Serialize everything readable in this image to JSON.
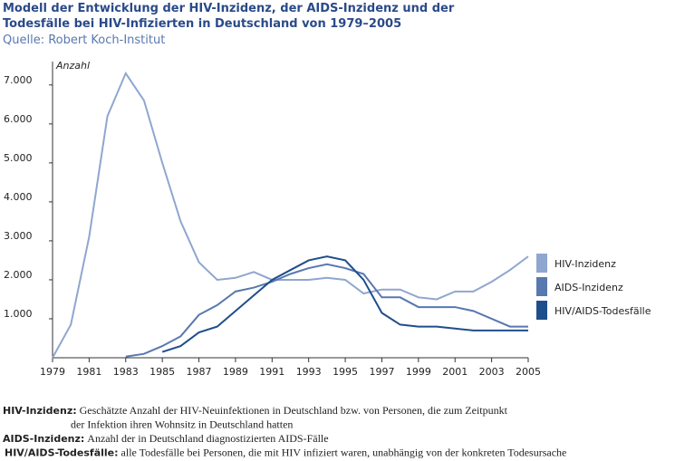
{
  "chart_data": {
    "type": "line",
    "title": [
      "Modell der Entwicklung der HIV-Inzidenz, der AIDS-Inzidenz und der",
      "Todesfälle bei HIV-Infizierten in Deutschland von 1979–2005"
    ],
    "subtitle": "Quelle: Robert Koch-Institut",
    "y_label": "Anzahl",
    "x": [
      1979,
      1980,
      1981,
      1982,
      1983,
      1984,
      1985,
      1986,
      1987,
      1988,
      1989,
      1990,
      1991,
      1992,
      1993,
      1994,
      1995,
      1996,
      1997,
      1998,
      1999,
      2000,
      2001,
      2002,
      2003,
      2004,
      2005
    ],
    "series": [
      {
        "name": "HIV-Inzidenz",
        "color": "#8fa6cf",
        "values": [
          0,
          850,
          3100,
          6200,
          7300,
          6600,
          5000,
          3500,
          2450,
          2000,
          2050,
          2200,
          2000,
          2000,
          2000,
          2050,
          2000,
          1650,
          1750,
          1750,
          1550,
          1500,
          1700,
          1700,
          1950,
          2250,
          2600
        ]
      },
      {
        "name": "AIDS-Inzidenz",
        "color": "#5878b0",
        "values": [
          null,
          null,
          null,
          null,
          30,
          100,
          300,
          550,
          1100,
          1350,
          1700,
          1800,
          1950,
          2150,
          2300,
          2400,
          2300,
          2150,
          1550,
          1550,
          1300,
          1300,
          1300,
          1200,
          1000,
          800,
          800
        ]
      },
      {
        "name": "HIV/AIDS-Todesfälle",
        "color": "#1f4e8c",
        "values": [
          null,
          null,
          null,
          null,
          null,
          null,
          150,
          300,
          650,
          800,
          1200,
          1600,
          2000,
          2250,
          2500,
          2600,
          2500,
          2000,
          1150,
          850,
          800,
          800,
          750,
          700,
          700,
          700,
          700
        ]
      }
    ],
    "xlim": [
      1979,
      2005
    ],
    "xticks": [
      1979,
      1981,
      1983,
      1985,
      1987,
      1989,
      1991,
      1993,
      1995,
      1997,
      1999,
      2001,
      2003,
      2005
    ],
    "ylim": [
      0,
      7600
    ],
    "yticks": [
      {
        "value": 1000,
        "label": "1.000"
      },
      {
        "value": 2000,
        "label": "2.000"
      },
      {
        "value": 3000,
        "label": "3.000"
      },
      {
        "value": 4000,
        "label": "4.000"
      },
      {
        "value": 5000,
        "label": "5.000"
      },
      {
        "value": 6000,
        "label": "6.000"
      },
      {
        "value": 7000,
        "label": "7.000"
      }
    ],
    "grid": false,
    "legend": "right",
    "footnotes": [
      {
        "term": "HIV-Inzidenz:",
        "text": [
          "Geschätzte Anzahl der HIV-Neuinfektionen in Deutschland bzw. von Personen, die zum Zeitpunkt",
          "der Infektion ihren Wohnsitz in Deutschland hatten"
        ]
      },
      {
        "term": "AIDS-Inzidenz:",
        "text": [
          "Anzahl der in Deutschland diagnostizierten AIDS-Fälle"
        ]
      },
      {
        "term": "HIV/AIDS-Todesfälle:",
        "text": [
          "alle Todesfälle bei Personen, die mit HIV infiziert waren, unabhängig von der konkreten Todesursache"
        ]
      }
    ]
  }
}
